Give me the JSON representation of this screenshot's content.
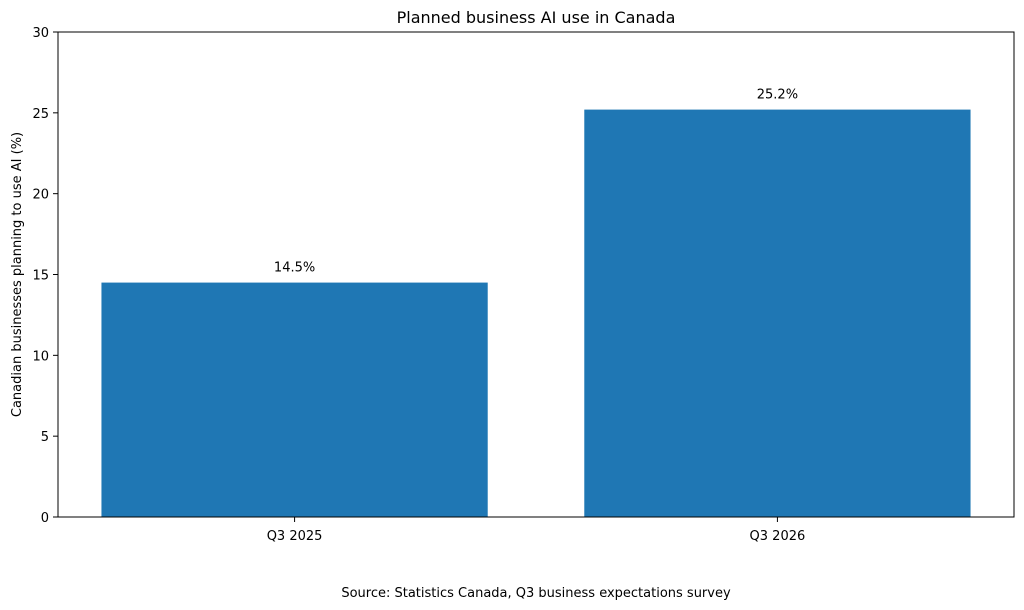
{
  "chart_data": {
    "type": "bar",
    "title": "Planned business AI use in Canada",
    "xlabel": "",
    "ylabel": "Canadian businesses planning to use AI (%)",
    "categories": [
      "Q3 2025",
      "Q3 2026"
    ],
    "values": [
      14.5,
      25.2
    ],
    "data_labels": [
      "14.5%",
      "25.2%"
    ],
    "ylim": [
      0,
      30
    ],
    "yticks": [
      0,
      5,
      10,
      15,
      20,
      25,
      30
    ],
    "ytick_labels": [
      "0",
      "5",
      "10",
      "15",
      "20",
      "25",
      "30"
    ],
    "bar_color": "#1f77b4",
    "grid": false,
    "legend": "none"
  },
  "footer": {
    "source": "Source: Statistics Canada, Q3 business expectations survey"
  }
}
